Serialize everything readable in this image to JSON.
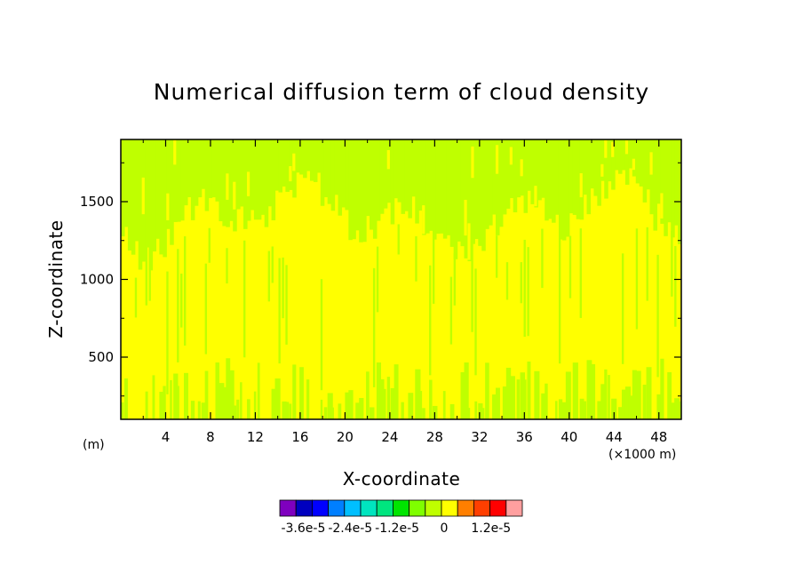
{
  "chart_data": {
    "type": "heatmap",
    "title": "Numerical diffusion term of cloud density",
    "xlabel": "X-coordinate",
    "ylabel": "Z-coordinate",
    "x_unit": "(×1000 m)",
    "y_unit": "(m)",
    "xlim": [
      0,
      50
    ],
    "ylim": [
      100,
      1900
    ],
    "x_ticks": [
      4,
      8,
      12,
      16,
      20,
      24,
      28,
      32,
      36,
      40,
      44,
      48
    ],
    "y_ticks": [
      500,
      1000,
      1500
    ],
    "fields": {
      "zero_band_color": "#ffff00",
      "small_negative_band_color": "#bfff00"
    },
    "colorbar": {
      "colors": [
        "#7f00bf",
        "#0000bf",
        "#0000ff",
        "#007fff",
        "#00bfff",
        "#00e5bf",
        "#00e57f",
        "#00e500",
        "#7fff00",
        "#bfff00",
        "#ffff00",
        "#ff7f00",
        "#ff3f00",
        "#ff0000",
        "#ff9f9f"
      ],
      "labels": [
        "-3.6e-5",
        "-2.4e-5",
        "-1.2e-5",
        "0",
        "1.2e-5"
      ],
      "label_values": [
        -3.6e-05,
        -2.4e-05,
        -1.2e-05,
        0,
        1.2e-05
      ],
      "levels": [
        -4.2e-05,
        -3.6e-05,
        -3.2e-05,
        -2.8e-05,
        -2.4e-05,
        -2e-05,
        -1.6e-05,
        -1.2e-05,
        -8e-06,
        -4e-06,
        0,
        4e-06,
        8e-06,
        1.2e-05,
        1.6e-05,
        2e-05
      ]
    }
  }
}
